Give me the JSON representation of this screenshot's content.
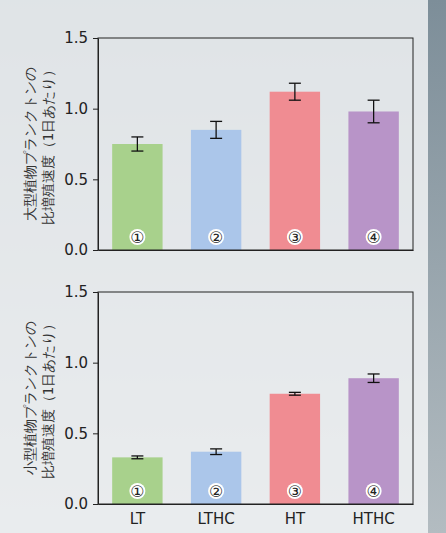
{
  "chart_data": [
    {
      "type": "bar",
      "y_label": [
        "大型植物プランクトンの",
        "比増殖速度（1日あたり）"
      ],
      "categories": [
        null,
        null,
        null,
        null
      ],
      "values": [
        0.75,
        0.85,
        1.12,
        0.98
      ],
      "errors": [
        0.05,
        0.06,
        0.06,
        0.08
      ],
      "bar_labels": [
        "①",
        "②",
        "③",
        "④"
      ],
      "colors": [
        "#a8d18c",
        "#abc6ea",
        "#f08c92",
        "#b894c8"
      ],
      "ylim": [
        0,
        1.5
      ],
      "yticks": [
        {
          "value": 0,
          "label": "0.0"
        },
        0.5,
        {
          "value": 1,
          "label": "1.0"
        },
        1.5
      ]
    },
    {
      "type": "bar",
      "y_label": [
        "小型植物プランクトンの",
        "比増殖速度（1日あたり）"
      ],
      "categories": [
        "LT",
        "LTHC",
        "HT",
        "HTHC"
      ],
      "values": [
        0.33,
        0.37,
        0.78,
        0.89
      ],
      "errors": [
        0.01,
        0.02,
        0.01,
        0.03
      ],
      "bar_labels": [
        "①",
        "②",
        "③",
        "④"
      ],
      "colors": [
        "#a8d18c",
        "#abc6ea",
        "#f08c92",
        "#b894c8"
      ],
      "ylim": [
        0,
        1.5
      ],
      "yticks": [
        {
          "value": 0,
          "label": "0.0"
        },
        0.5,
        {
          "value": 1,
          "label": "1.0"
        },
        1.5
      ]
    }
  ]
}
